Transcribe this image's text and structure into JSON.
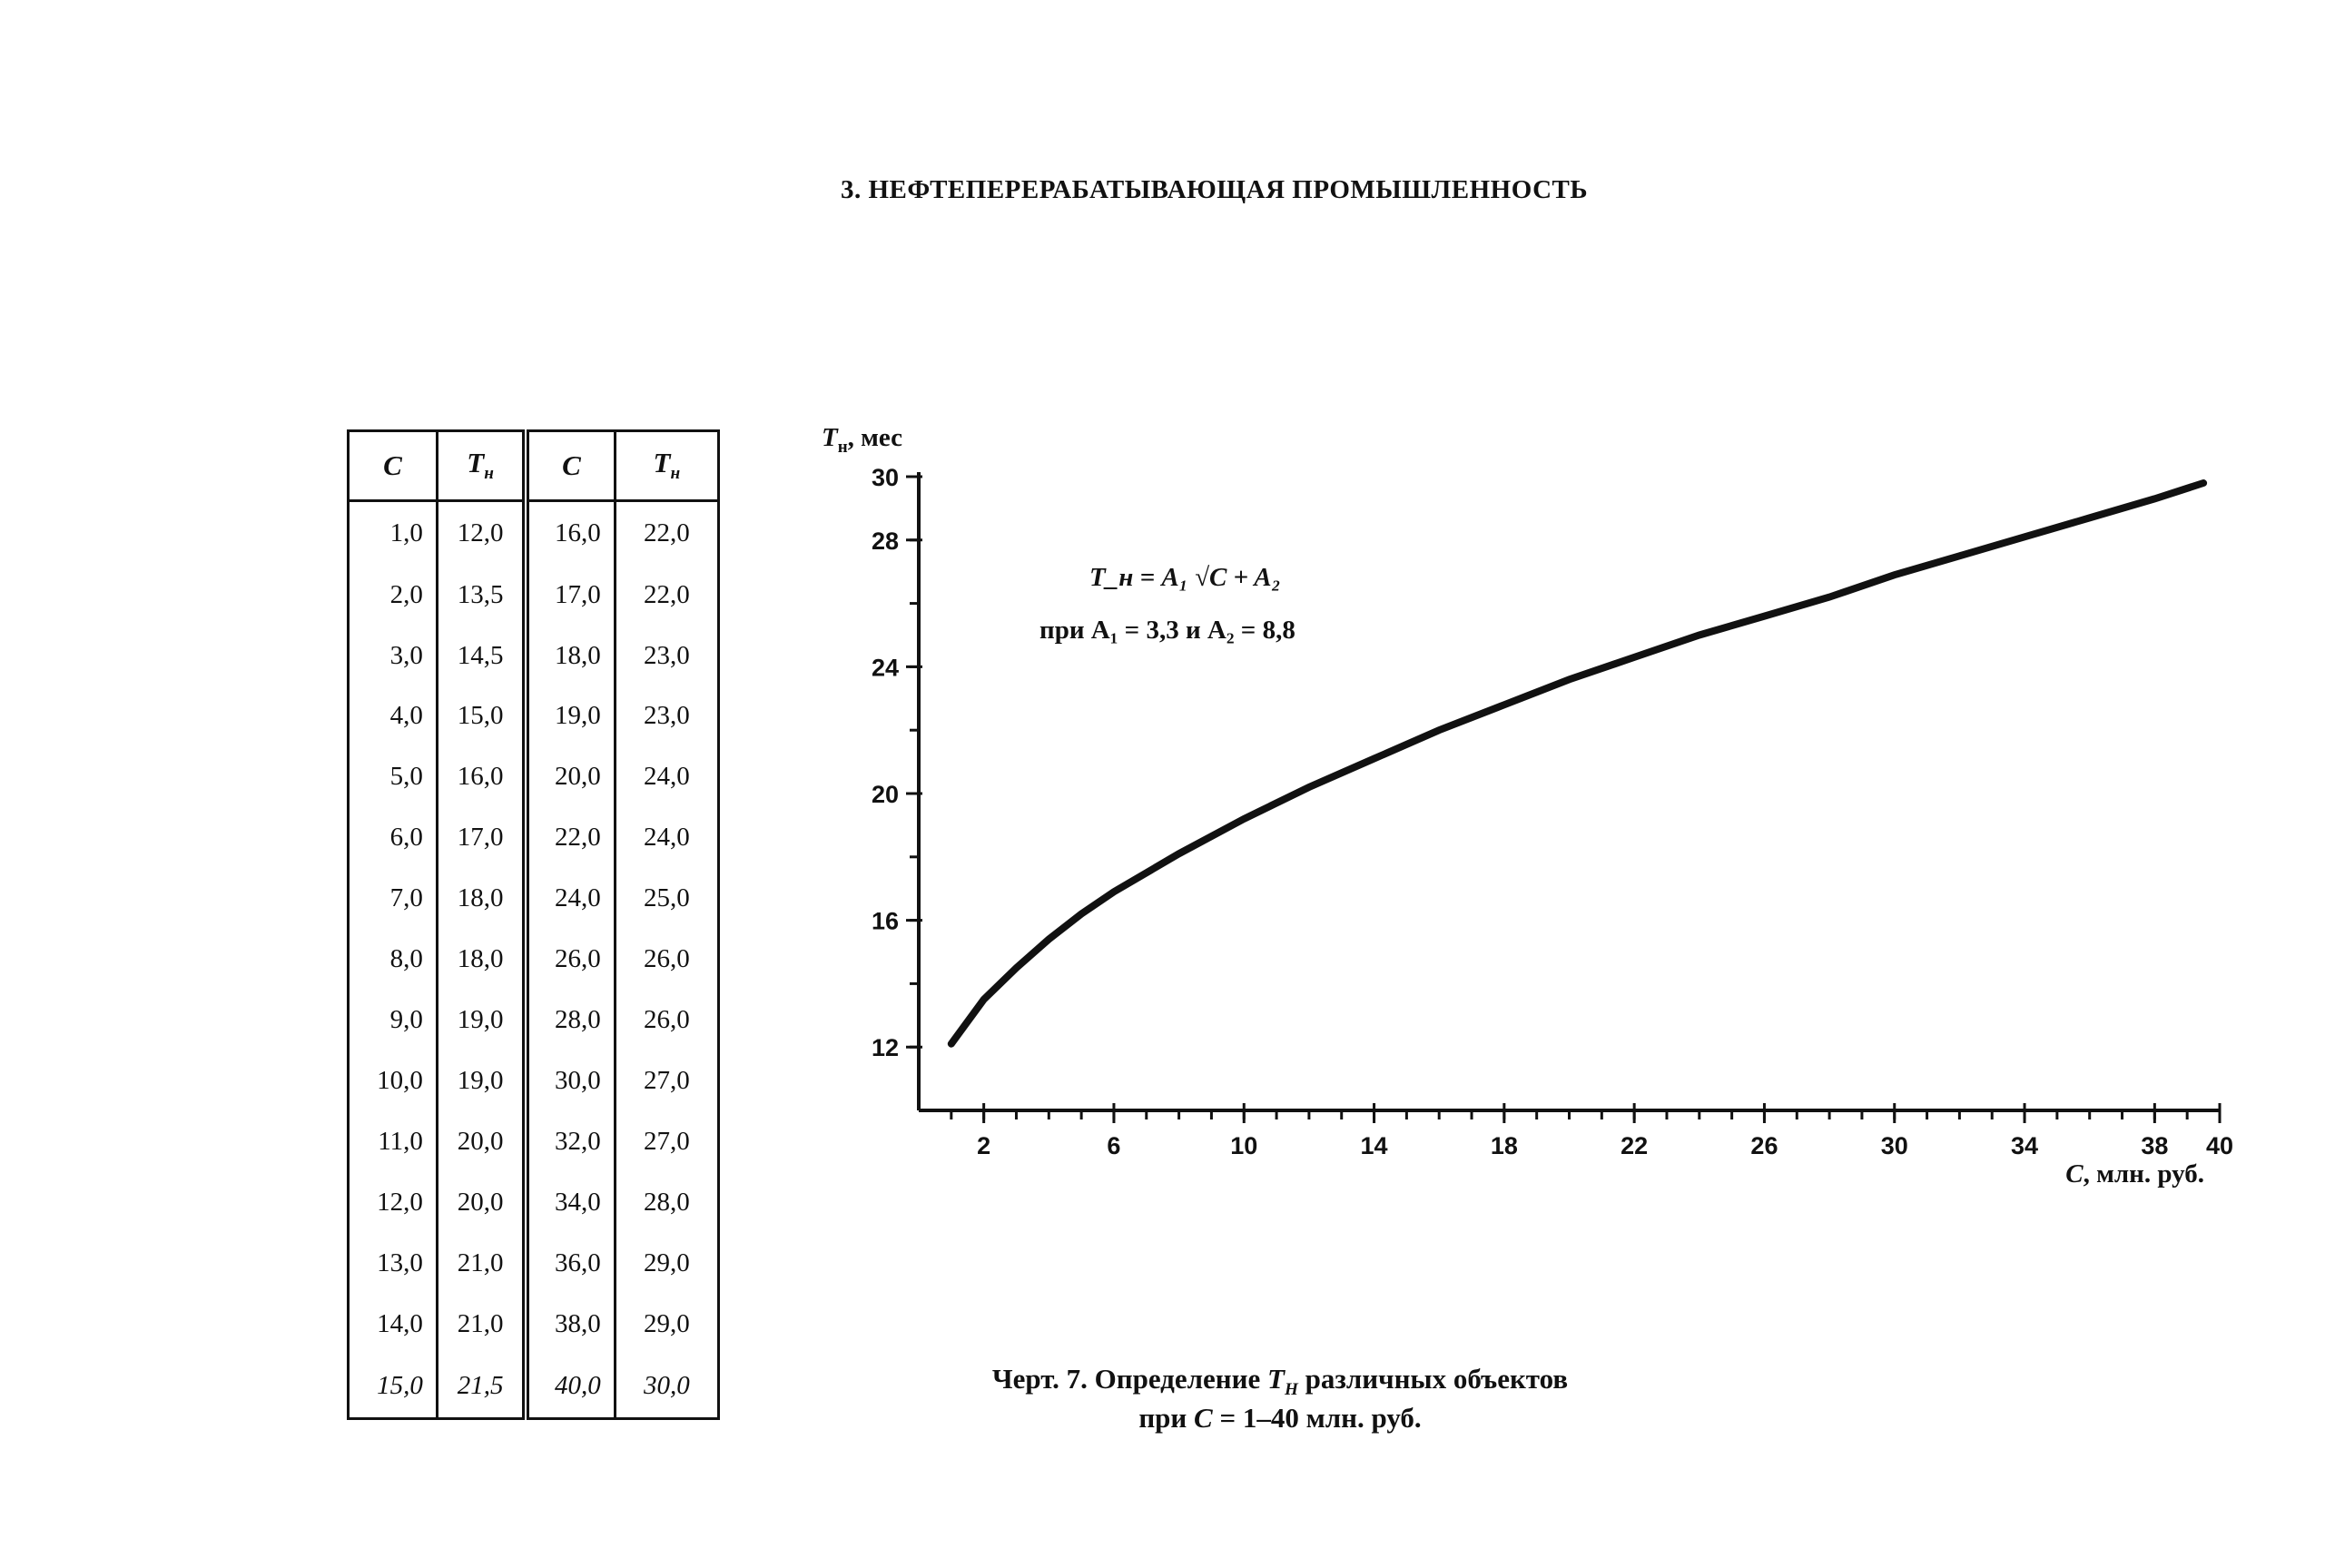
{
  "header": {
    "title": "3. НЕФТЕПЕРЕРАБАТЫВАЮЩАЯ ПРОМЫШЛЕННОСТЬ"
  },
  "table": {
    "headers": [
      "C",
      "T",
      "C",
      "T"
    ],
    "header_subscripts": [
      "",
      "н",
      "",
      "н"
    ],
    "rows": [
      [
        "1,0",
        "12,0",
        "16,0",
        "22,0"
      ],
      [
        "2,0",
        "13,5",
        "17,0",
        "22,0"
      ],
      [
        "3,0",
        "14,5",
        "18,0",
        "23,0"
      ],
      [
        "4,0",
        "15,0",
        "19,0",
        "23,0"
      ],
      [
        "5,0",
        "16,0",
        "20,0",
        "24,0"
      ],
      [
        "6,0",
        "17,0",
        "22,0",
        "24,0"
      ],
      [
        "7,0",
        "18,0",
        "24,0",
        "25,0"
      ],
      [
        "8,0",
        "18,0",
        "26,0",
        "26,0"
      ],
      [
        "9,0",
        "19,0",
        "28,0",
        "26,0"
      ],
      [
        "10,0",
        "19,0",
        "30,0",
        "27,0"
      ],
      [
        "11,0",
        "20,0",
        "32,0",
        "27,0"
      ],
      [
        "12,0",
        "20,0",
        "34,0",
        "28,0"
      ],
      [
        "13,0",
        "21,0",
        "36,0",
        "29,0"
      ],
      [
        "14,0",
        "21,0",
        "38,0",
        "29,0"
      ],
      [
        "15,0",
        "21,5",
        "40,0",
        "30,0"
      ]
    ]
  },
  "chart_data": {
    "type": "line",
    "ylabel": "T",
    "ylabel_sub": "н",
    "ylabel_unit": ", мес",
    "xlabel": "C",
    "xlabel_unit": ", млн. руб.",
    "xlim": [
      0,
      40
    ],
    "ylim": [
      10,
      30
    ],
    "x_ticks": [
      2,
      6,
      10,
      14,
      18,
      22,
      26,
      30,
      34,
      38,
      40
    ],
    "x_tick_labels": [
      "2",
      "6",
      "10",
      "14",
      "18",
      "22",
      "26",
      "30",
      "34",
      "38",
      "40"
    ],
    "y_ticks": [
      12,
      16,
      20,
      24,
      28,
      30
    ],
    "y_tick_labels": [
      "12",
      "16",
      "20",
      "24",
      "28",
      "30"
    ],
    "formula": {
      "A1": 3.3,
      "A2": 8.8,
      "line1": "T_н = A₁ √C + A₂",
      "line2_text": "при A₁ = 3,3 и A₂ = 8,8"
    },
    "series": [
      {
        "x": [
          1,
          2,
          3,
          4,
          5,
          6,
          8,
          10,
          12,
          14,
          16,
          18,
          20,
          22,
          24,
          26,
          28,
          30,
          32,
          34,
          36,
          38,
          39.5
        ],
        "y": [
          12.1,
          13.5,
          14.5,
          15.4,
          16.2,
          16.9,
          18.1,
          19.2,
          20.2,
          21.1,
          22.0,
          22.8,
          23.6,
          24.3,
          25.0,
          25.6,
          26.2,
          26.9,
          27.5,
          28.1,
          28.7,
          29.3,
          29.8
        ]
      }
    ]
  },
  "caption": {
    "line1_prefix": "Черт. 7. Определение ",
    "line1_symbol": "T",
    "line1_sub": "H",
    "line1_suffix": " различных объектов",
    "line2_prefix": "при ",
    "line2_symbol": "C",
    "line2_suffix": " = 1–40 млн. руб."
  }
}
